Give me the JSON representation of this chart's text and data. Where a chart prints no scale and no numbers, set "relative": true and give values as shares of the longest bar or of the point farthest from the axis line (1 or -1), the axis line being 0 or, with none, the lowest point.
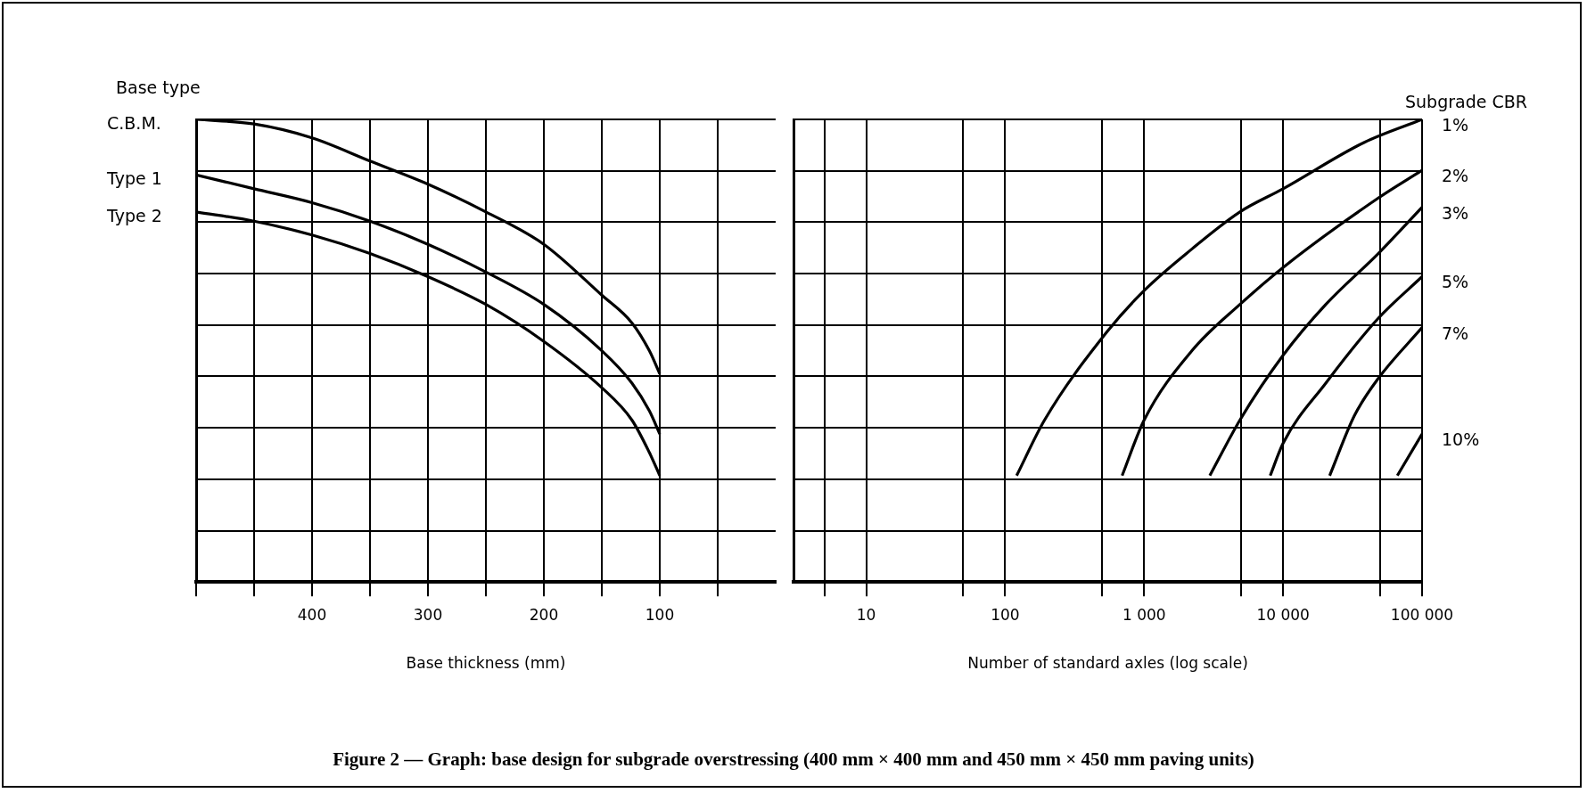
{
  "chart_data": [
    {
      "type": "line",
      "title": "Figure 2 — Graph: base design for subgrade overstressing (400 mm × 400 mm and 450 mm × 450 mm paving units)",
      "xlabel": "Base thickness (mm)",
      "legend_title": "Base type",
      "relative": true,
      "grid": true,
      "legend": false,
      "xlim": [
        500,
        0
      ],
      "xticks": [
        {
          "value": 500,
          "label": null
        },
        {
          "value": 450,
          "label": null
        },
        400,
        {
          "value": 350,
          "label": null
        },
        300,
        {
          "value": 250,
          "label": null
        },
        200,
        {
          "value": 150,
          "label": null
        },
        100,
        {
          "value": 50,
          "label": null
        }
      ],
      "x": [
        500,
        450,
        400,
        350,
        300,
        250,
        200,
        150,
        124,
        109,
        100
      ],
      "series": [
        {
          "name": "C.B.M.",
          "color": "#000000",
          "values": [
            1.0,
            0.99,
            0.96,
            0.91,
            0.86,
            0.8,
            0.73,
            0.62,
            0.56,
            0.5,
            0.45
          ]
        },
        {
          "name": "Type 1",
          "color": "#000000",
          "values": [
            0.88,
            0.85,
            0.82,
            0.78,
            0.73,
            0.67,
            0.6,
            0.5,
            0.43,
            0.37,
            0.32
          ]
        },
        {
          "name": "Type 2",
          "color": "#000000",
          "values": [
            0.8,
            0.78,
            0.75,
            0.71,
            0.66,
            0.6,
            0.52,
            0.42,
            0.35,
            0.28,
            0.23
          ]
        }
      ]
    },
    {
      "type": "line",
      "xlabel": "Number of standard axles (log scale)",
      "legend_title": "Subgrade CBR",
      "relative": true,
      "grid": true,
      "legend": false,
      "log": "x",
      "xlim": [
        3,
        100000
      ],
      "xticks": [
        {
          "value": 5,
          "label": null
        },
        10,
        {
          "value": 50,
          "label": null
        },
        100,
        {
          "value": 500,
          "label": null
        },
        {
          "value": 1000,
          "label": "1 000"
        },
        {
          "value": 5000,
          "label": null
        },
        {
          "value": 10000,
          "label": "10 000"
        },
        {
          "value": 50000,
          "label": null
        },
        {
          "value": 100000,
          "label": "100 000"
        }
      ],
      "series": [
        {
          "name": "1%",
          "color": "#000000",
          "x": [
            121,
            192,
            538,
            1000,
            2210,
            4890,
            10000,
            38200,
            100000
          ],
          "values": [
            0.23,
            0.35,
            0.54,
            0.63,
            0.72,
            0.8,
            0.85,
            0.95,
            1.0
          ]
        },
        {
          "name": "2%",
          "color": "#000000",
          "x": [
            695,
            1000,
            2210,
            4890,
            10000,
            48400,
            100000
          ],
          "values": [
            0.23,
            0.35,
            0.5,
            0.6,
            0.68,
            0.83,
            0.89
          ]
        },
        {
          "name": "3%",
          "color": "#000000",
          "x": [
            2970,
            4890,
            10000,
            20300,
            48400,
            100000
          ],
          "values": [
            0.23,
            0.35,
            0.49,
            0.6,
            0.71,
            0.81
          ]
        },
        {
          "name": "5%",
          "color": "#000000",
          "x": [
            8080,
            10000,
            20300,
            48400,
            100000
          ],
          "values": [
            0.23,
            0.3,
            0.43,
            0.57,
            0.66
          ]
        },
        {
          "name": "7%",
          "color": "#000000",
          "x": [
            21640,
            32640,
            48400,
            100000
          ],
          "values": [
            0.23,
            0.36,
            0.44,
            0.55
          ]
        },
        {
          "name": "10%",
          "color": "#000000",
          "x": [
            66400,
            100000
          ],
          "values": [
            0.23,
            0.32
          ]
        }
      ]
    }
  ]
}
